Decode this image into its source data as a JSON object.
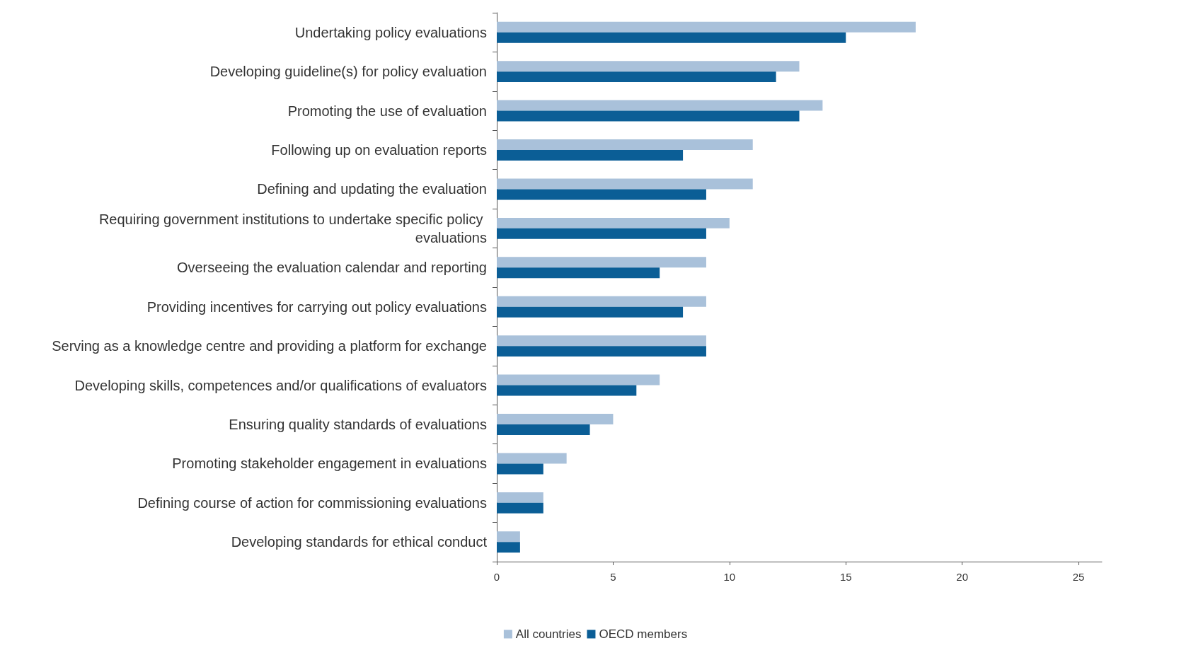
{
  "chart_data": {
    "type": "bar",
    "orientation": "horizontal",
    "categories": [
      "Undertaking policy evaluations",
      "Developing guideline(s) for policy evaluation",
      "Promoting the use of evaluation",
      "Following up on evaluation reports",
      "Defining and updating the evaluation",
      "Requiring government institutions to undertake specific policy evaluations",
      "Overseeing the evaluation calendar and reporting",
      "Providing incentives for carrying out policy evaluations",
      "Serving as a knowledge centre and providing a platform for exchange",
      "Developing skills, competences and/or qualifications of evaluators",
      "Ensuring quality standards of evaluations",
      "Promoting stakeholder engagement in evaluations",
      "Defining course of action for commissioning evaluations",
      "Developing standards for ethical conduct"
    ],
    "series": [
      {
        "name": "All countries",
        "color": "#a9c1da",
        "values": [
          18,
          13,
          14,
          11,
          11,
          10,
          9,
          9,
          9,
          7,
          5,
          3,
          2,
          1
        ]
      },
      {
        "name": "OECD members",
        "color": "#0b5e96",
        "values": [
          15,
          12,
          13,
          8,
          9,
          9,
          7,
          8,
          9,
          6,
          4,
          2,
          2,
          1
        ]
      }
    ],
    "xlim": [
      0,
      26
    ],
    "xticks": [
      0,
      5,
      10,
      15,
      20,
      25
    ],
    "grid": false,
    "legend": "bottom"
  }
}
